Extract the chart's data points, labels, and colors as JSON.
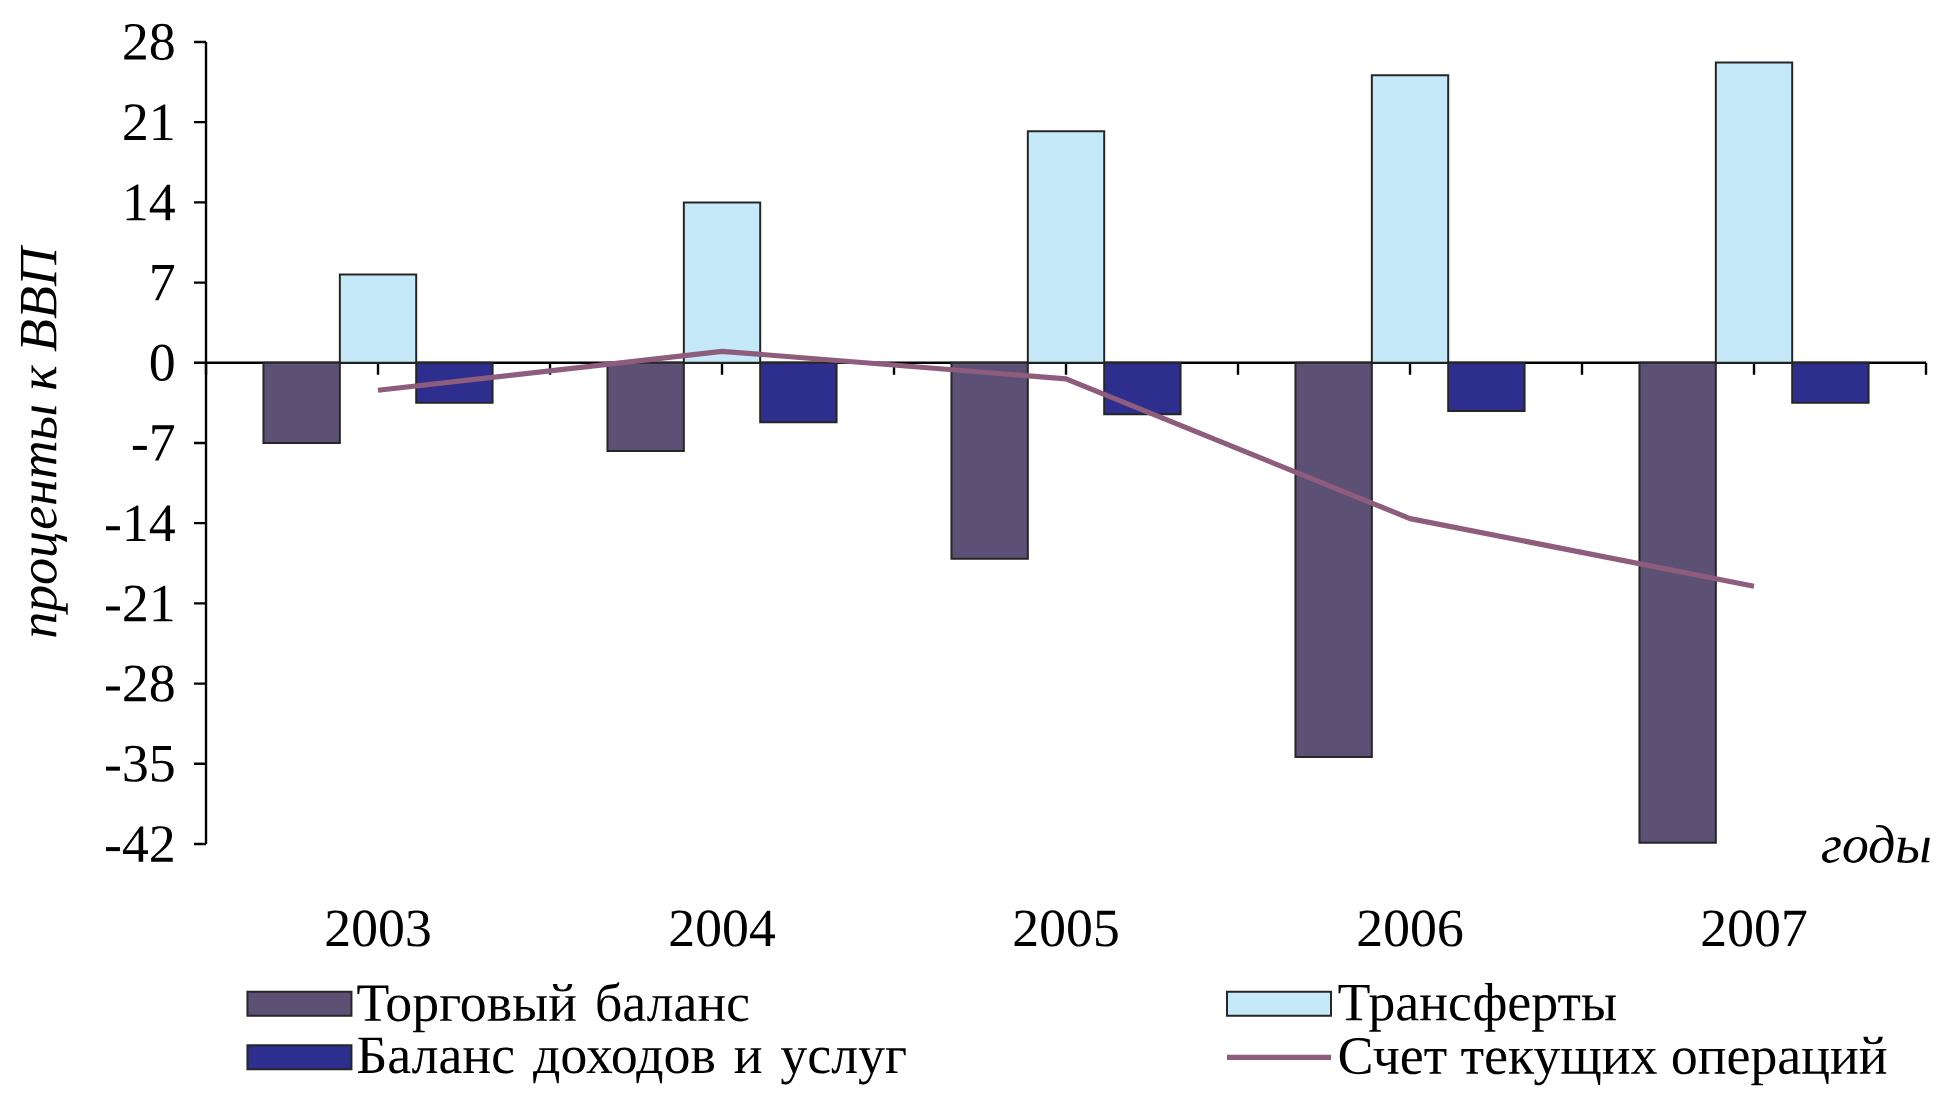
{
  "chart_data": {
    "type": "bar",
    "categories": [
      "2003",
      "2004",
      "2005",
      "2006",
      "2007"
    ],
    "series": [
      {
        "name": "Торговый баланс",
        "type": "bar",
        "color": "#5c5075",
        "values": [
          -7.0,
          -7.7,
          -17.1,
          -34.4,
          -41.9
        ]
      },
      {
        "name": "Трансферты",
        "type": "bar",
        "color": "#c5e9f8",
        "values": [
          7.7,
          14.0,
          20.2,
          25.1,
          26.2
        ]
      },
      {
        "name": "Баланс доходов и услуг",
        "type": "bar",
        "color": "#2e2e8f",
        "values": [
          -3.5,
          -5.2,
          -4.5,
          -4.2,
          -3.5
        ]
      },
      {
        "name": "Счет текущих операций",
        "type": "line",
        "color": "#8e5c7c",
        "values": [
          -2.4,
          1.0,
          -1.4,
          -13.6,
          -19.5
        ]
      }
    ],
    "xlabel": "годы",
    "ylabel": "проценты к ВВП",
    "ylim": [
      -42,
      28
    ],
    "yticks": [
      -42,
      -35,
      -28,
      -21,
      -14,
      -7,
      0,
      7,
      14,
      21,
      28
    ],
    "legend": "bottom"
  }
}
